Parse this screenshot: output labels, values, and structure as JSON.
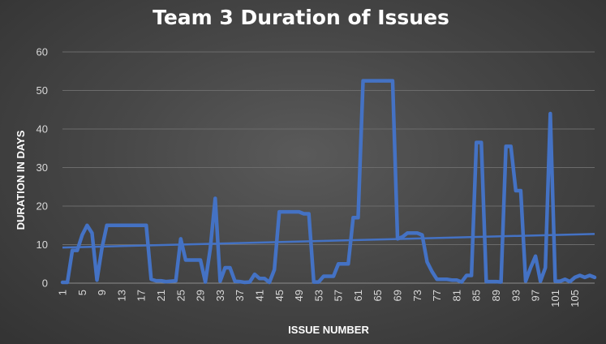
{
  "chart_data": {
    "type": "line",
    "title": "Team 3 Duration of Issues",
    "xlabel": "ISSUE NUMBER",
    "ylabel": "DURATION IN DAYS",
    "ylim": [
      0,
      60
    ],
    "yticks": [
      "0",
      "10",
      "20",
      "30",
      "40",
      "50",
      "60"
    ],
    "xtick_labels": [
      "1",
      "5",
      "9",
      "13",
      "17",
      "21",
      "25",
      "29",
      "33",
      "37",
      "41",
      "45",
      "49",
      "53",
      "57",
      "61",
      "65",
      "69",
      "73",
      "77",
      "81",
      "85",
      "89",
      "93",
      "97",
      "101",
      "105"
    ],
    "x_label_step": 4,
    "grid": true,
    "legend": "none",
    "line_color": "#4472c4",
    "trend_color": "#4472c4",
    "series": [
      {
        "values": [
          0.2,
          0.2,
          8.5,
          8.5,
          12.5,
          15,
          13,
          0.8,
          9,
          15,
          15,
          15,
          15,
          15,
          15,
          15,
          15,
          15,
          1,
          0.6,
          0.6,
          0.4,
          0.5,
          0.6,
          11.5,
          6,
          6,
          6,
          6,
          0.3,
          9,
          22,
          0.5,
          4,
          4,
          0.5,
          0.4,
          0.2,
          0.3,
          2.3,
          1.2,
          1.2,
          0.2,
          3.5,
          18.5,
          18.5,
          18.5,
          18.5,
          18.5,
          18,
          18,
          0.3,
          0.3,
          1.8,
          1.8,
          1.8,
          5,
          5,
          5,
          17,
          17,
          52.5,
          52.5,
          52.5,
          52.5,
          52.5,
          52.5,
          52.5,
          11.5,
          12,
          13,
          13,
          13,
          12.5,
          5.5,
          3,
          1,
          1,
          1,
          0.8,
          0.8,
          0.3,
          2,
          2,
          36.5,
          36.5,
          0.4,
          0.4,
          0.4,
          0.3,
          35.5,
          35.5,
          24,
          24,
          0.5,
          4,
          7,
          0.5,
          4,
          44,
          0.5,
          0.5,
          1,
          0.4,
          1.5,
          2,
          1.5,
          2,
          1.5
        ]
      }
    ],
    "trendline": {
      "type": "linear"
    }
  }
}
